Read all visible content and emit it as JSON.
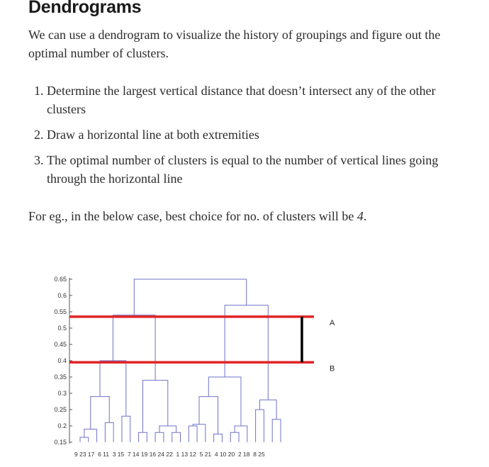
{
  "article": {
    "heading": "Dendrograms",
    "intro": "We can use a dendrogram to visualize the history of groupings and figure out the optimal number of clusters.",
    "steps": [
      {
        "num": "1.",
        "text": "Determine the largest vertical distance that doesn’t intersect any of the other clusters"
      },
      {
        "num": "2.",
        "text": "Draw a horizontal line at both extremities"
      },
      {
        "num": "3.",
        "text": "The optimal number of clusters is equal to the number of vertical lines going through the horizontal line"
      }
    ],
    "example_prefix": "For eg., in the below case, best choice for no. of clusters will be ",
    "example_value": "4",
    "example_suffix": "."
  },
  "chart_data": {
    "type": "dendrogram",
    "y_ticks": [
      "0.65",
      "0.6",
      "0.55",
      "0.5",
      "0.45",
      "0.4",
      "0.35",
      "0.3",
      "0.25",
      "0.2",
      "0.15"
    ],
    "ylim": [
      0.15,
      0.65
    ],
    "leaf_order": [
      "9",
      "23",
      "17",
      "6",
      "11",
      "3",
      "15",
      "7",
      "14",
      "19",
      "16",
      "24",
      "22",
      "1",
      "13",
      "12",
      "5",
      "21",
      "4",
      "10",
      "20",
      "2",
      "18",
      "8",
      "25"
    ],
    "leaf_labels_printed": "9 23 17  6 11  3 15  7 14 19 16 24 22  1 13 12  5 21  4 10 20  2 18  8 25",
    "merges": [
      {
        "left": 0,
        "right": 1,
        "height": 0.165
      },
      {
        "left": 25,
        "right": 2,
        "height": 0.19
      },
      {
        "left": 3,
        "right": 4,
        "height": 0.21
      },
      {
        "left": 26,
        "right": 27,
        "height": 0.29
      },
      {
        "left": 5,
        "right": 6,
        "height": 0.23
      },
      {
        "left": 28,
        "right": 29,
        "height": 0.4
      },
      {
        "left": 7,
        "right": 8,
        "height": 0.18
      },
      {
        "left": 9,
        "right": 10,
        "height": 0.18
      },
      {
        "left": 11,
        "right": 12,
        "height": 0.18
      },
      {
        "left": 32,
        "right": 33,
        "height": 0.2
      },
      {
        "left": 31,
        "right": 34,
        "height": 0.34
      },
      {
        "left": 30,
        "right": 35,
        "height": 0.54
      },
      {
        "left": 13,
        "right": 14,
        "height": 0.2
      },
      {
        "left": 37,
        "right": 15,
        "height": 0.205
      },
      {
        "left": 16,
        "right": 17,
        "height": 0.175
      },
      {
        "left": 38,
        "right": 39,
        "height": 0.29
      },
      {
        "left": 18,
        "right": 19,
        "height": 0.18
      },
      {
        "left": 41,
        "right": 20,
        "height": 0.2
      },
      {
        "left": 40,
        "right": 42,
        "height": 0.35
      },
      {
        "left": 21,
        "right": 22,
        "height": 0.25
      },
      {
        "left": 23,
        "right": 24,
        "height": 0.22
      },
      {
        "left": 44,
        "right": 45,
        "height": 0.28
      },
      {
        "left": 43,
        "right": 46,
        "height": 0.57
      },
      {
        "left": 36,
        "right": 47,
        "height": 0.65
      }
    ],
    "cut_lines": [
      {
        "label": "A",
        "y": 0.535
      },
      {
        "label": "B",
        "y": 0.395
      }
    ],
    "gap_marker": {
      "from": 0.395,
      "to": 0.535
    },
    "colors": {
      "tree": "#6f72c8",
      "cut": "#e02525",
      "marker": "#000000",
      "axis": "#555555"
    }
  }
}
